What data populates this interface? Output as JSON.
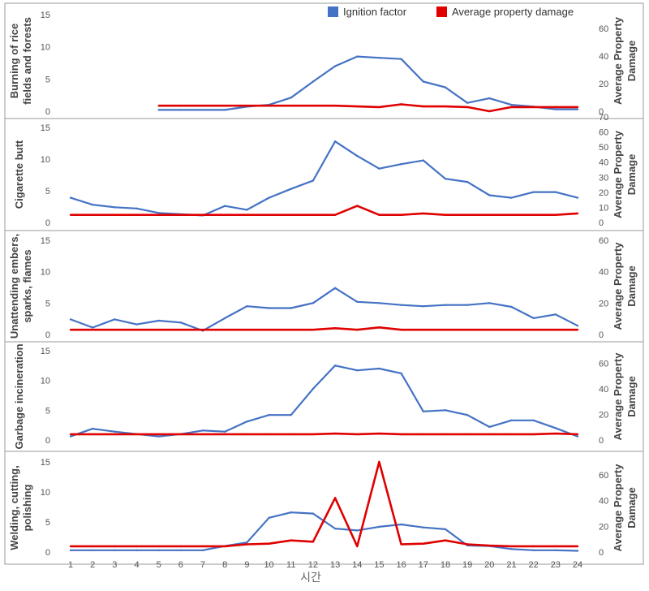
{
  "xlabel": "시간",
  "x_ticks": [
    "1",
    "2",
    "3",
    "4",
    "5",
    "6",
    "7",
    "8",
    "9",
    "10",
    "11",
    "12",
    "13",
    "14",
    "15",
    "16",
    "17",
    "18",
    "19",
    "20",
    "21",
    "22",
    "23",
    "24"
  ],
  "legend": {
    "placement": "top-right",
    "items": [
      {
        "label": "Ignition factor",
        "color": "#4472C4"
      },
      {
        "label": "Average property damage",
        "color": "#E00000"
      }
    ]
  },
  "colors": {
    "ignition": "#4472C4",
    "damage": "#E00000",
    "border": "#9a9a9a",
    "text": "#555555"
  },
  "chart_data": [
    {
      "type": "line",
      "ylabel": "Burning of rice fields and forests",
      "y2label": "Average Property Damage",
      "ylim": [
        0,
        15
      ],
      "yticks": [
        0,
        5,
        10,
        15
      ],
      "y2lim": [
        0,
        70
      ],
      "y2ticks": [
        0,
        20,
        40,
        60
      ],
      "x": [
        1,
        2,
        3,
        4,
        5,
        6,
        7,
        8,
        9,
        10,
        11,
        12,
        13,
        14,
        15,
        16,
        17,
        18,
        19,
        20,
        21,
        22,
        23,
        24
      ],
      "series": [
        {
          "name": "Ignition factor",
          "axis": "left",
          "values": [
            null,
            null,
            null,
            null,
            0.2,
            0.2,
            0.2,
            0.2,
            0.7,
            1.0,
            2.1,
            4.6,
            7.0,
            8.5,
            8.3,
            8.1,
            4.6,
            3.7,
            1.3,
            2.0,
            1.0,
            0.7,
            0.3,
            0.3
          ]
        },
        {
          "name": "Average property damage",
          "axis": "right",
          "values": [
            null,
            null,
            null,
            null,
            4.0,
            4.0,
            4.0,
            4.0,
            4.0,
            4.0,
            4.0,
            4.0,
            4.0,
            3.5,
            3.0,
            5.0,
            3.5,
            3.5,
            3.0,
            0.0,
            3.0,
            3.0,
            3.0,
            3.0
          ]
        }
      ]
    },
    {
      "type": "line",
      "ylabel": "Cigarette butt",
      "y2label": "Average Property Damage",
      "ylim": [
        0,
        15
      ],
      "yticks": [
        0,
        5,
        10,
        15
      ],
      "y2lim": [
        0,
        70
      ],
      "y2ticks": [
        0,
        10,
        20,
        30,
        40,
        50,
        60,
        70
      ],
      "x": [
        1,
        2,
        3,
        4,
        5,
        6,
        7,
        8,
        9,
        10,
        11,
        12,
        13,
        14,
        15,
        16,
        17,
        18,
        19,
        20,
        21,
        22,
        23,
        24
      ],
      "series": [
        {
          "name": "Ignition factor",
          "axis": "left",
          "values": [
            3.9,
            2.8,
            2.4,
            2.2,
            1.5,
            1.3,
            1.1,
            2.6,
            2.0,
            3.9,
            5.3,
            6.6,
            12.8,
            10.5,
            8.5,
            9.2,
            9.8,
            6.9,
            6.4,
            4.3,
            3.9,
            4.8,
            4.8,
            3.9
          ]
        },
        {
          "name": "Average property damage",
          "axis": "right",
          "values": [
            5,
            5,
            5,
            5,
            5,
            5,
            5,
            5,
            5,
            5,
            5,
            5,
            5,
            11,
            5,
            5,
            6,
            5,
            5,
            5,
            5,
            5,
            5,
            6
          ]
        }
      ]
    },
    {
      "type": "line",
      "ylabel": "Unattending embers, sparks, flames",
      "y2label": "Average Property Damage",
      "ylim": [
        0,
        15
      ],
      "yticks": [
        0,
        5,
        10,
        15
      ],
      "y2lim": [
        0,
        60
      ],
      "y2ticks": [
        0,
        20,
        40,
        60
      ],
      "x": [
        1,
        2,
        3,
        4,
        5,
        6,
        7,
        8,
        9,
        10,
        11,
        12,
        13,
        14,
        15,
        16,
        17,
        18,
        19,
        20,
        21,
        22,
        23,
        24
      ],
      "series": [
        {
          "name": "Ignition factor",
          "axis": "left",
          "values": [
            2.4,
            1.1,
            2.4,
            1.6,
            2.2,
            1.9,
            0.6,
            2.6,
            4.5,
            4.2,
            4.2,
            5.0,
            7.4,
            5.2,
            5.0,
            4.7,
            4.5,
            4.7,
            4.7,
            5.0,
            4.4,
            2.6,
            3.2,
            1.4
          ]
        },
        {
          "name": "Average property damage",
          "axis": "right",
          "values": [
            3,
            3,
            3,
            3,
            3,
            3,
            3,
            3,
            3,
            3,
            3,
            3,
            4,
            3,
            4.5,
            3,
            3,
            3,
            3,
            3,
            3,
            3,
            3,
            3
          ]
        }
      ]
    },
    {
      "type": "line",
      "ylabel": "Garbage incineration",
      "y2label": "Average Property Damage",
      "ylim": [
        0,
        15
      ],
      "yticks": [
        0,
        5,
        10,
        15
      ],
      "y2lim": [
        0,
        70
      ],
      "y2ticks": [
        0,
        20,
        40,
        60
      ],
      "x": [
        1,
        2,
        3,
        4,
        5,
        6,
        7,
        8,
        9,
        10,
        11,
        12,
        13,
        14,
        15,
        16,
        17,
        18,
        19,
        20,
        21,
        22,
        23,
        24
      ],
      "series": [
        {
          "name": "Ignition factor",
          "axis": "left",
          "values": [
            0.6,
            1.9,
            1.4,
            1.0,
            0.6,
            1.0,
            1.6,
            1.4,
            3.1,
            4.2,
            4.2,
            8.6,
            12.5,
            11.7,
            12.0,
            11.2,
            4.8,
            5.0,
            4.2,
            2.2,
            3.3,
            3.3,
            2.0,
            0.6
          ]
        },
        {
          "name": "Average property damage",
          "axis": "right",
          "values": [
            4.5,
            4.5,
            4.5,
            4.5,
            4.5,
            4.5,
            4.5,
            4.5,
            4.5,
            4.5,
            4.5,
            4.5,
            5,
            4.5,
            5,
            4.5,
            4.5,
            4.5,
            4.5,
            4.5,
            4.5,
            4.5,
            5,
            4.5
          ]
        }
      ]
    },
    {
      "type": "line",
      "ylabel": "Welding, cutting, polishing",
      "y2label": "Average Property Damage",
      "ylim": [
        0,
        15
      ],
      "yticks": [
        0,
        5,
        10,
        15
      ],
      "y2lim": [
        0,
        70
      ],
      "y2ticks": [
        0,
        20,
        40,
        60
      ],
      "x": [
        1,
        2,
        3,
        4,
        5,
        6,
        7,
        8,
        9,
        10,
        11,
        12,
        13,
        14,
        15,
        16,
        17,
        18,
        19,
        20,
        21,
        22,
        23,
        24
      ],
      "series": [
        {
          "name": "Ignition factor",
          "axis": "left",
          "values": [
            0.3,
            0.3,
            0.3,
            0.3,
            0.3,
            0.3,
            0.3,
            1.0,
            1.6,
            5.7,
            6.6,
            6.4,
            3.9,
            3.6,
            4.2,
            4.6,
            4.1,
            3.8,
            1.1,
            1.0,
            0.5,
            0.3,
            0.3,
            0.2
          ]
        },
        {
          "name": "Average property damage",
          "axis": "right",
          "values": [
            4.5,
            4.5,
            4.5,
            4.5,
            4.5,
            4.5,
            4.5,
            4.5,
            6,
            6.5,
            9,
            8,
            42,
            4.5,
            70,
            6,
            6.5,
            9,
            6,
            5,
            4.5,
            4.5,
            4.5,
            4.5
          ]
        }
      ]
    }
  ]
}
